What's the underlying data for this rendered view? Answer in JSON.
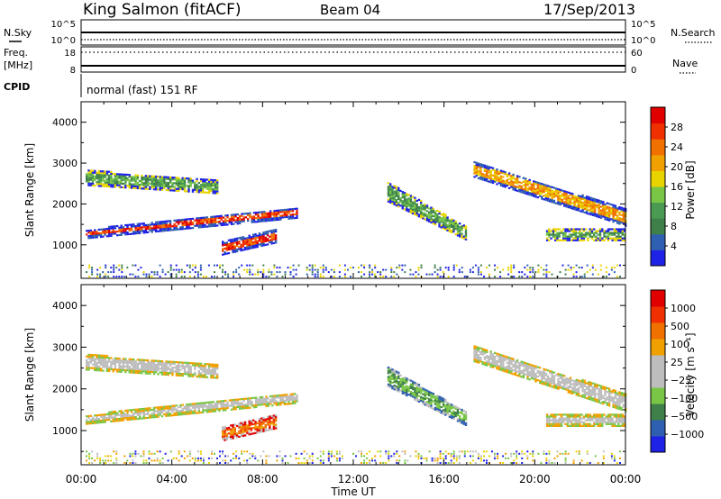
{
  "header": {
    "station": "King Salmon (fitACF)",
    "beam": "Beam 04",
    "date": "17/Sep/2013"
  },
  "status_panels": {
    "nsky_label": "N.Sky",
    "nsearch_label": "N.Search",
    "noise_ticks": [
      "10^5",
      "10^0"
    ],
    "freq_label_1": "Freq.",
    "freq_label_2": "[MHz]",
    "freq_ticks": [
      "18",
      "8"
    ],
    "nave_label": "Nave",
    "nave_ticks": [
      "60",
      "0"
    ],
    "cpid_label": "CPID",
    "cpid_text": "normal (fast) 151 RF"
  },
  "axes": {
    "ylabel": "Slant Range [km]",
    "xlabel": "Time UT",
    "x_ticks": [
      "00:00",
      "04:00",
      "08:00",
      "12:00",
      "16:00",
      "20:00",
      "00:00"
    ],
    "y_ticks": [
      "1000",
      "2000",
      "3000",
      "4000"
    ]
  },
  "power_colorbar": {
    "label": "Power [dB]",
    "ticks": [
      "4",
      "8",
      "12",
      "16",
      "20",
      "24",
      "28"
    ],
    "colors": [
      "#1e22e6",
      "#2f5fb0",
      "#3f7f4a",
      "#4a9a52",
      "#79c646",
      "#e8d400",
      "#f0a000",
      "#f07000",
      "#f03000",
      "#e00000"
    ]
  },
  "velocity_colorbar": {
    "label": "Velocity [m s⁻¹]",
    "ticks": [
      "1000",
      "500",
      "100",
      "25",
      "−25",
      "−100",
      "−500",
      "−1000"
    ],
    "colors": [
      "#1e22e6",
      "#2f5fb0",
      "#3f7f4a",
      "#79c646",
      "#bdbdbd",
      "#bdbdbd",
      "#f0a000",
      "#f07000",
      "#f03000",
      "#e00000"
    ]
  },
  "chart_data": [
    {
      "type": "heatmap",
      "title": "",
      "xlabel": "Time UT",
      "ylabel": "Slant Range [km]",
      "xlim": [
        0,
        24
      ],
      "ylim": [
        180,
        4500
      ],
      "colorbar": "Power [dB]",
      "bands": [
        {
          "t": [
            0.2,
            9.5
          ],
          "r0": [
            1200,
            1700
          ],
          "r1": [
            1300,
            1850
          ],
          "core": "red"
        },
        {
          "t": [
            0.2,
            6.0
          ],
          "r0": [
            2500,
            2300
          ],
          "r1": [
            2750,
            2500
          ],
          "core": "green"
        },
        {
          "t": [
            6.2,
            8.6
          ],
          "r0": [
            800,
            1100
          ],
          "r1": [
            1000,
            1300
          ],
          "core": "red"
        },
        {
          "t": [
            13.5,
            17.0
          ],
          "r0": [
            2100,
            1150
          ],
          "r1": [
            2450,
            1350
          ],
          "core": "green"
        },
        {
          "t": [
            17.3,
            24.0
          ],
          "r0": [
            2700,
            1500
          ],
          "r1": [
            2950,
            1800
          ],
          "core": "orange"
        },
        {
          "t": [
            20.5,
            24.0
          ],
          "r0": [
            1150,
            1150
          ],
          "r1": [
            1300,
            1300
          ],
          "core": "green"
        }
      ]
    },
    {
      "type": "heatmap",
      "title": "",
      "xlabel": "Time UT",
      "ylabel": "Slant Range [km]",
      "xlim": [
        0,
        24
      ],
      "ylim": [
        180,
        4500
      ],
      "colorbar": "Velocity [m s⁻¹]",
      "bands": [
        {
          "t": [
            0.2,
            9.5
          ],
          "r0": [
            1200,
            1700
          ],
          "r1": [
            1300,
            1850
          ],
          "core": "grey"
        },
        {
          "t": [
            0.2,
            6.0
          ],
          "r0": [
            2500,
            2300
          ],
          "r1": [
            2750,
            2500
          ],
          "core": "grey"
        },
        {
          "t": [
            6.2,
            8.6
          ],
          "r0": [
            800,
            1100
          ],
          "r1": [
            1000,
            1300
          ],
          "core": "orange"
        },
        {
          "t": [
            13.5,
            17.0
          ],
          "r0": [
            2100,
            1150
          ],
          "r1": [
            2450,
            1350
          ],
          "core": "green"
        },
        {
          "t": [
            17.3,
            24.0
          ],
          "r0": [
            2700,
            1500
          ],
          "r1": [
            2950,
            1800
          ],
          "core": "grey"
        },
        {
          "t": [
            20.5,
            24.0
          ],
          "r0": [
            1150,
            1150
          ],
          "r1": [
            1300,
            1300
          ],
          "core": "grey"
        }
      ]
    }
  ]
}
